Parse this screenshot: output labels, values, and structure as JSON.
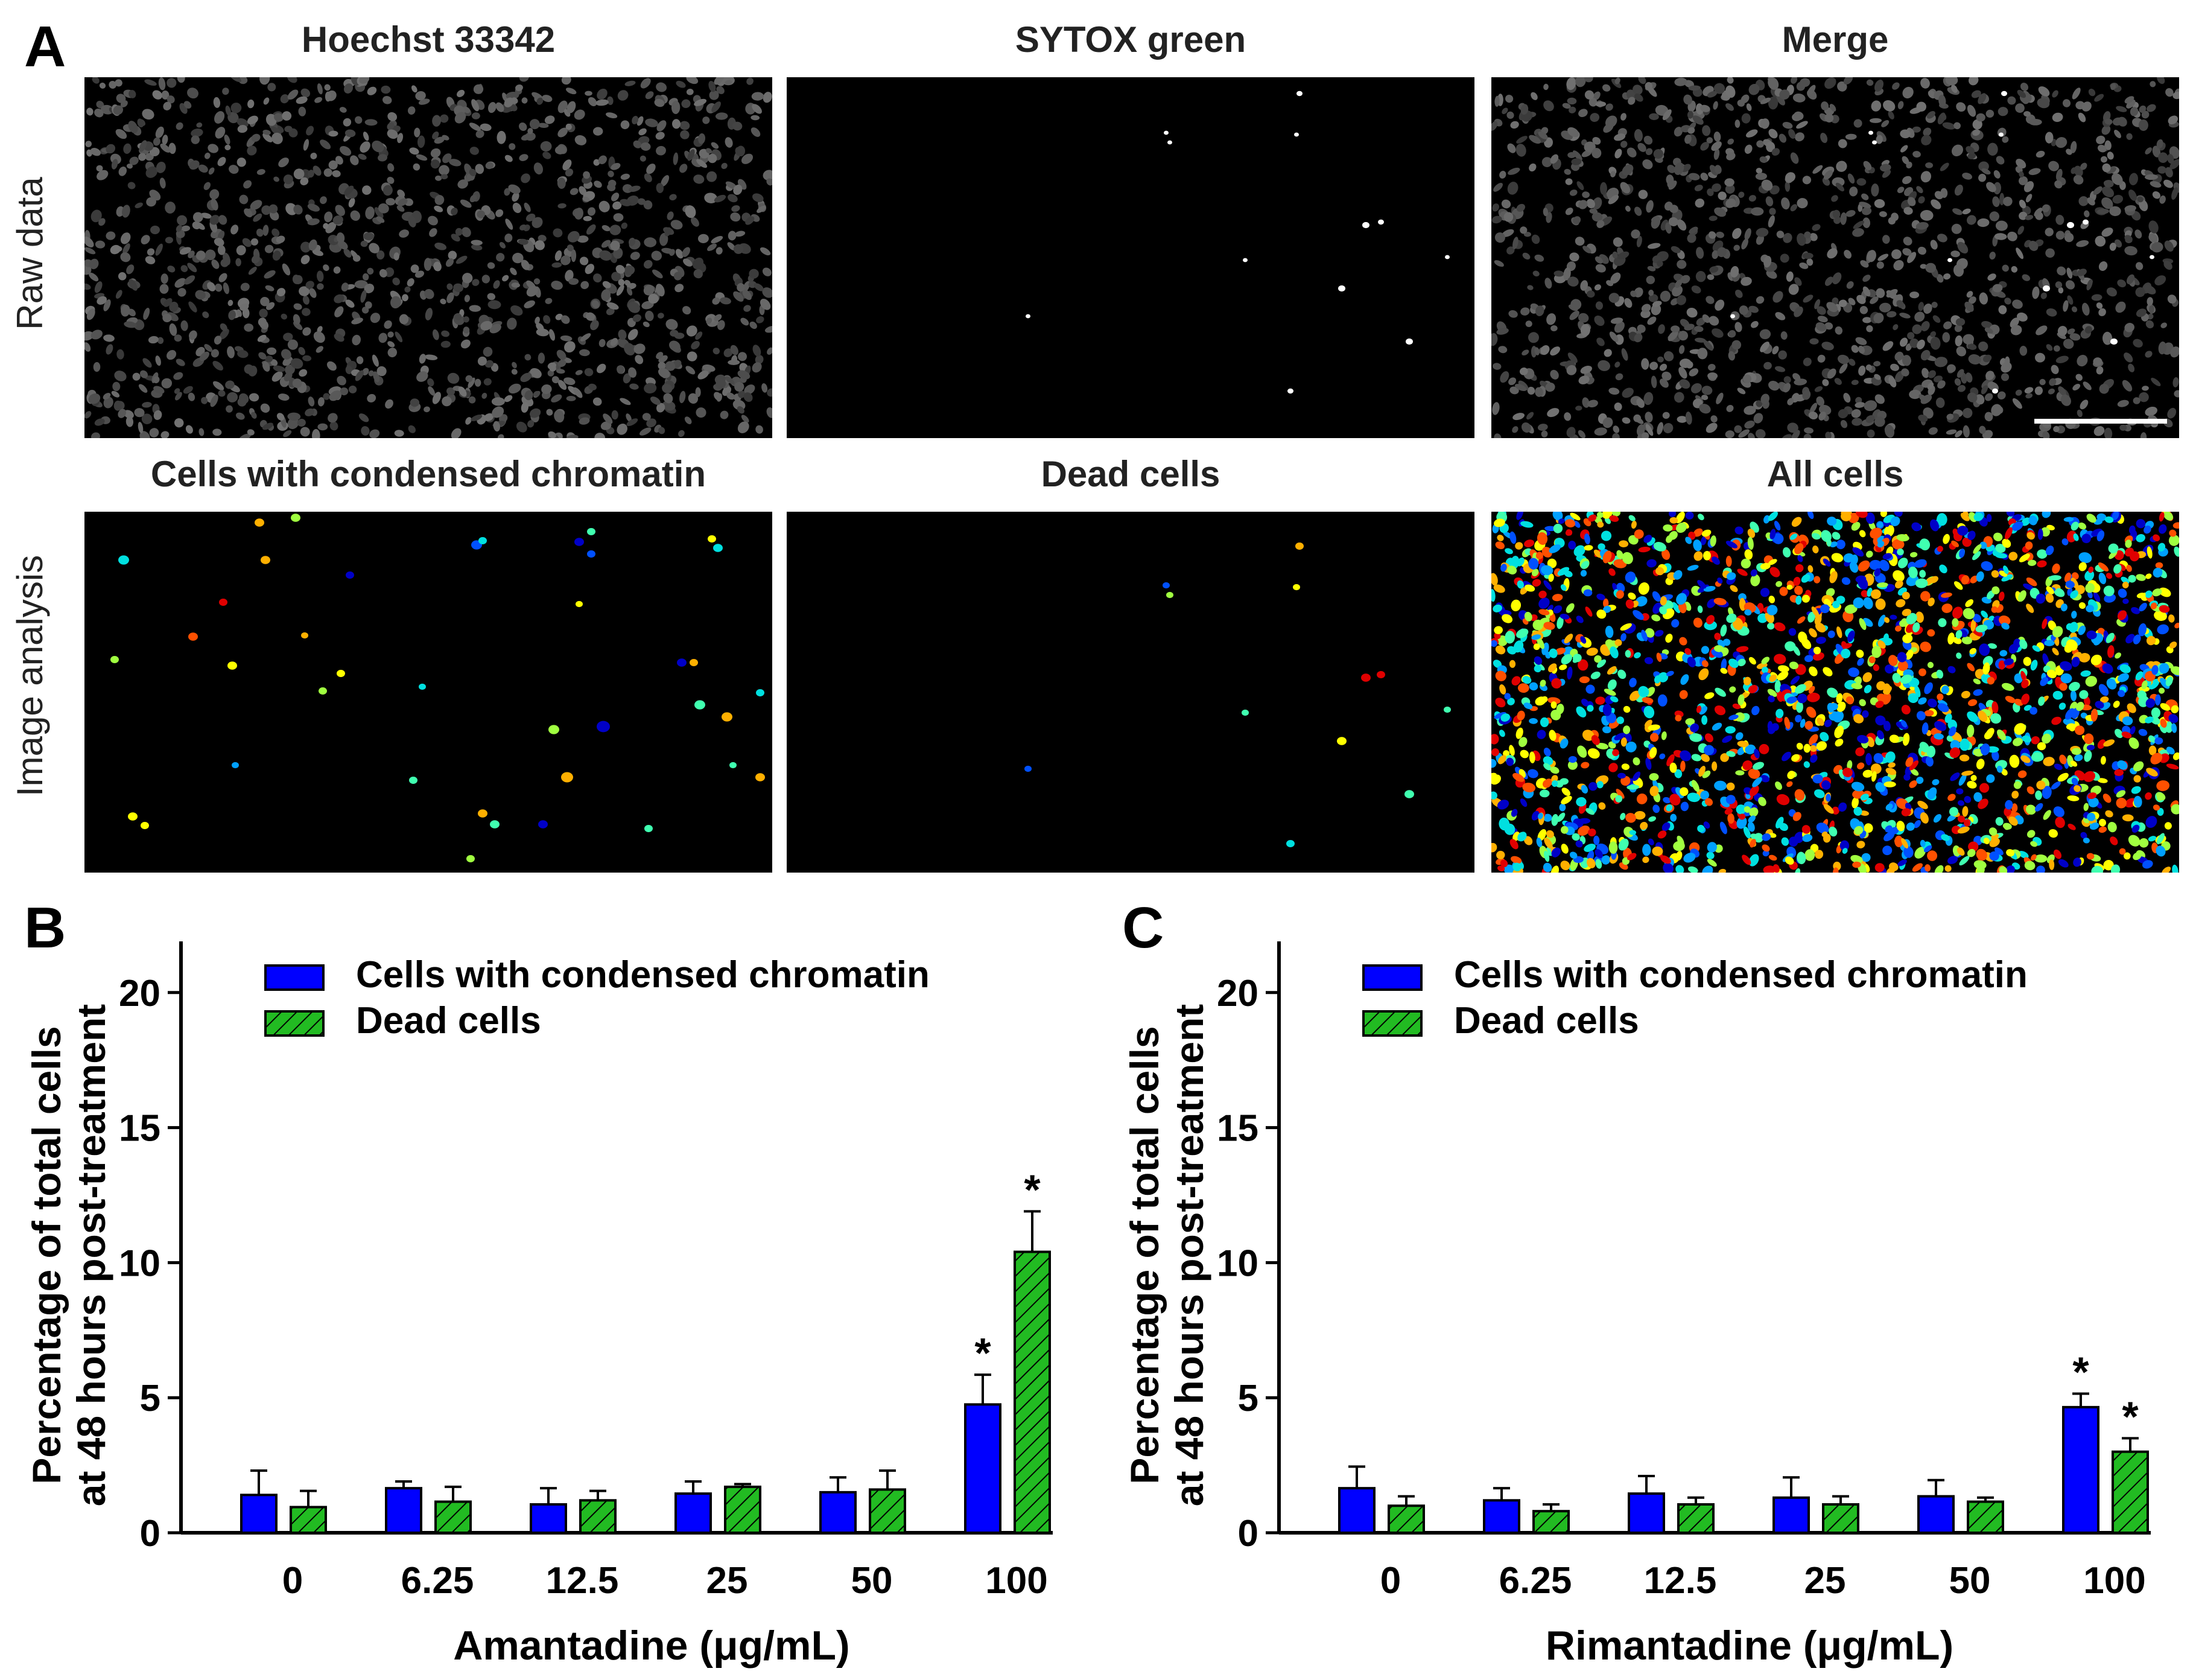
{
  "panel_a": {
    "letter": "A",
    "column_titles_top": [
      "Hoechst 33342",
      "SYTOX green",
      "Merge"
    ],
    "column_titles_bottom": [
      "Cells with condensed chromatin",
      "Dead cells",
      "All cells"
    ],
    "row_labels": [
      "Raw data",
      "Image analysis"
    ]
  },
  "colors": {
    "chromatin_bar": "#0000ff",
    "dead_bar": "#22bb22",
    "hatch": "#000000",
    "axis": "#000000"
  },
  "chart_data": [
    {
      "panel": "B",
      "type": "bar",
      "categories": [
        "0",
        "6.25",
        "12.5",
        "25",
        "50",
        "100"
      ],
      "series": [
        {
          "name": "Cells with condensed chromatin",
          "values": [
            1.4,
            1.65,
            1.05,
            1.45,
            1.5,
            4.75
          ],
          "errors": [
            0.9,
            0.25,
            0.6,
            0.45,
            0.55,
            1.1
          ]
        },
        {
          "name": "Dead cells",
          "values": [
            0.95,
            1.15,
            1.2,
            1.7,
            1.6,
            10.4
          ],
          "errors": [
            0.6,
            0.55,
            0.35,
            0.1,
            0.7,
            1.5
          ]
        }
      ],
      "significance": [
        [
          null,
          null
        ],
        [
          null,
          null
        ],
        [
          null,
          null
        ],
        [
          null,
          null
        ],
        [
          null,
          null
        ],
        [
          "*",
          "*"
        ]
      ],
      "xlabel": "Amantadine (μg/mL)",
      "ylabel_line1": "Percentage of total cells",
      "ylabel_line2": "at 48 hours post-treatment",
      "ylim": [
        0,
        21
      ],
      "yticks": [
        "0",
        "5",
        "10",
        "15",
        "20"
      ],
      "legend_position": "top-left"
    },
    {
      "panel": "C",
      "type": "bar",
      "categories": [
        "0",
        "6.25",
        "12.5",
        "25",
        "50",
        "100"
      ],
      "series": [
        {
          "name": "Cells with condensed chromatin",
          "values": [
            1.65,
            1.2,
            1.45,
            1.3,
            1.35,
            4.65
          ],
          "errors": [
            0.8,
            0.45,
            0.65,
            0.75,
            0.6,
            0.5
          ]
        },
        {
          "name": "Dead cells",
          "values": [
            1.0,
            0.8,
            1.05,
            1.05,
            1.15,
            3.0
          ],
          "errors": [
            0.35,
            0.25,
            0.25,
            0.3,
            0.15,
            0.5
          ]
        }
      ],
      "significance": [
        [
          null,
          null
        ],
        [
          null,
          null
        ],
        [
          null,
          null
        ],
        [
          null,
          null
        ],
        [
          null,
          null
        ],
        [
          "*",
          "*"
        ]
      ],
      "xlabel": "Rimantadine (μg/mL)",
      "ylabel_line1": "Percentage of total cells",
      "ylabel_line2": "at 48 hours post-treatment",
      "ylim": [
        0,
        21
      ],
      "yticks": [
        "0",
        "5",
        "10",
        "15",
        "20"
      ],
      "legend_position": "top-left"
    }
  ]
}
